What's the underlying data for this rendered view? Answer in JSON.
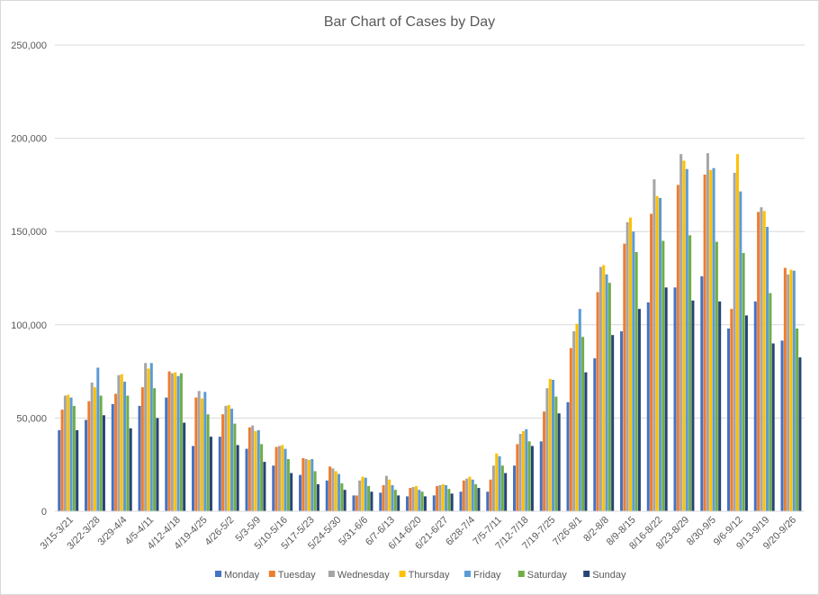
{
  "chart_data": {
    "type": "bar",
    "title": "Bar Chart of Cases by Day",
    "xlabel": "",
    "ylabel": "",
    "ylim": [
      0,
      250000
    ],
    "yticks": [
      0,
      50000,
      100000,
      150000,
      200000,
      250000
    ],
    "ytick_labels": [
      "0",
      "50,000",
      "100,000",
      "150,000",
      "200,000",
      "250,000"
    ],
    "grid": true,
    "legend_position": "bottom",
    "categories": [
      "3/15-3/21",
      "3/22-3/28",
      "3/29-4/4",
      "4/5-4/11",
      "4/12-4/18",
      "4/19-4/25",
      "4/26-5/2",
      "5/3-5/9",
      "5/10-5/16",
      "5/17-5/23",
      "5/24-5/30",
      "5/31-6/6",
      "6/7-6/13",
      "6/14-6/20",
      "6/21-6/27",
      "6/28-7/4",
      "7/5-7/11",
      "7/12-7/18",
      "7/19-7/25",
      "7/26-8/1",
      "8/2-8/8",
      "8/9-8/15",
      "8/16-8/22",
      "8/23-8/29",
      "8/30-9/5",
      "9/6-9/12",
      "9/13-9/19",
      "9/20-9/26"
    ],
    "series": [
      {
        "name": "Monday",
        "color": "#4472c4",
        "values": [
          43500,
          49000,
          57500,
          56500,
          61000,
          35000,
          40000,
          33500,
          24500,
          19500,
          16500,
          8500,
          10000,
          8000,
          8500,
          10500,
          10500,
          24500,
          37500,
          58500,
          82000,
          96500,
          112000,
          120000,
          126000,
          98000,
          112500,
          91500
        ]
      },
      {
        "name": "Tuesday",
        "color": "#ed7d31",
        "values": [
          54500,
          59000,
          63000,
          66500,
          75000,
          61000,
          52000,
          45000,
          34500,
          28500,
          24000,
          8500,
          14000,
          12500,
          13500,
          16500,
          17000,
          36000,
          53500,
          87500,
          117500,
          143500,
          159500,
          175000,
          180500,
          108500,
          160500,
          130500
        ]
      },
      {
        "name": "Wednesday",
        "color": "#a5a5a5",
        "values": [
          62000,
          69000,
          73000,
          79500,
          74000,
          64500,
          56500,
          46000,
          35000,
          28000,
          23000,
          16500,
          19000,
          13000,
          14000,
          17500,
          24500,
          41500,
          66000,
          96500,
          131000,
          155000,
          178000,
          191500,
          192000,
          181500,
          163000,
          127000
        ]
      },
      {
        "name": "Thursday",
        "color": "#ffc000",
        "values": [
          62500,
          66500,
          73500,
          76500,
          74500,
          60500,
          57000,
          43000,
          35500,
          27500,
          21500,
          18500,
          17000,
          13500,
          14500,
          18500,
          31000,
          43000,
          71000,
          100500,
          132000,
          157500,
          169000,
          188000,
          183000,
          191500,
          161000,
          129500
        ]
      },
      {
        "name": "Friday",
        "color": "#5b9bd5",
        "values": [
          61000,
          77000,
          69500,
          79500,
          72500,
          64000,
          55000,
          43500,
          33500,
          28000,
          20000,
          18000,
          14000,
          11500,
          14000,
          17000,
          29500,
          44000,
          70500,
          108500,
          127000,
          150000,
          168000,
          183500,
          184000,
          171500,
          152500,
          129000
        ]
      },
      {
        "name": "Saturday",
        "color": "#70ad47",
        "values": [
          56500,
          62000,
          62000,
          66000,
          74000,
          52000,
          47000,
          36000,
          28000,
          21500,
          15000,
          13500,
          11500,
          10500,
          12000,
          14500,
          24500,
          37500,
          61500,
          93500,
          122500,
          139000,
          145000,
          148000,
          144500,
          138500,
          117000,
          98000
        ]
      },
      {
        "name": "Sunday",
        "color": "#264478",
        "values": [
          43500,
          51500,
          44500,
          50000,
          47500,
          40000,
          35500,
          26500,
          20500,
          14500,
          11500,
          10500,
          8500,
          8000,
          9500,
          12500,
          20500,
          35000,
          52500,
          74500,
          94500,
          108500,
          120000,
          113000,
          112500,
          105000,
          90000,
          82500
        ]
      }
    ]
  }
}
